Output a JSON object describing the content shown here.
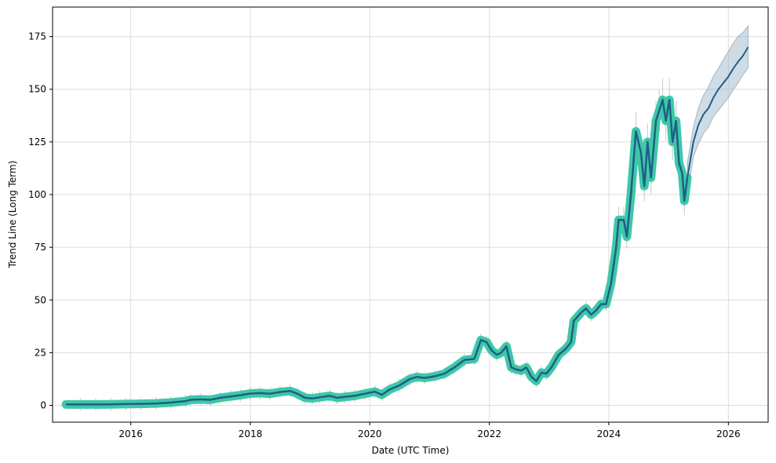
{
  "chart_data": {
    "type": "line",
    "title": "",
    "xlabel": "Date (UTC Time)",
    "ylabel": "Trend Line (Long Term)",
    "xlim": [
      "2014-09-10",
      "2026-09-01"
    ],
    "ylim": [
      -8,
      189
    ],
    "grid": true,
    "x_ticks": [
      {
        "date": "2016-01-01",
        "label": "2016"
      },
      {
        "date": "2018-01-01",
        "label": "2018"
      },
      {
        "date": "2020-01-01",
        "label": "2020"
      },
      {
        "date": "2022-01-01",
        "label": "2022"
      },
      {
        "date": "2024-01-01",
        "label": "2024"
      },
      {
        "date": "2026-01-01",
        "label": "2026"
      }
    ],
    "y_ticks": [
      0,
      25,
      50,
      75,
      100,
      125,
      150,
      175
    ],
    "colors": {
      "history_band": "#3ec8a8",
      "line": "#1f5f86",
      "forecast_band": "#9fb8cc",
      "spikes": "#9aa5b0"
    },
    "series": [
      {
        "role": "historical",
        "points": [
          [
            "2014-12-01",
            0.4
          ],
          [
            "2015-03-01",
            0.4
          ],
          [
            "2015-06-01",
            0.4
          ],
          [
            "2015-09-01",
            0.45
          ],
          [
            "2015-12-01",
            0.6
          ],
          [
            "2016-03-01",
            0.7
          ],
          [
            "2016-06-01",
            0.9
          ],
          [
            "2016-09-01",
            1.3
          ],
          [
            "2016-12-01",
            2.0
          ],
          [
            "2017-01-01",
            2.6
          ],
          [
            "2017-03-01",
            2.8
          ],
          [
            "2017-05-01",
            2.6
          ],
          [
            "2017-07-01",
            3.6
          ],
          [
            "2017-09-01",
            4.2
          ],
          [
            "2017-11-01",
            4.8
          ],
          [
            "2018-01-01",
            5.6
          ],
          [
            "2018-03-01",
            5.8
          ],
          [
            "2018-05-01",
            5.5
          ],
          [
            "2018-07-01",
            6.3
          ],
          [
            "2018-09-01",
            6.8
          ],
          [
            "2018-10-15",
            5.5
          ],
          [
            "2018-12-01",
            3.6
          ],
          [
            "2019-01-15",
            3.3
          ],
          [
            "2019-03-01",
            3.8
          ],
          [
            "2019-05-01",
            4.5
          ],
          [
            "2019-06-15",
            3.6
          ],
          [
            "2019-08-01",
            4.0
          ],
          [
            "2019-10-01",
            4.5
          ],
          [
            "2019-12-01",
            5.5
          ],
          [
            "2020-02-01",
            6.5
          ],
          [
            "2020-03-15",
            5.0
          ],
          [
            "2020-05-01",
            7.5
          ],
          [
            "2020-07-01",
            9.5
          ],
          [
            "2020-09-01",
            12.5
          ],
          [
            "2020-10-15",
            13.5
          ],
          [
            "2020-12-01",
            13.0
          ],
          [
            "2021-02-01",
            13.8
          ],
          [
            "2021-04-01",
            15.0
          ],
          [
            "2021-06-01",
            18.0
          ],
          [
            "2021-08-01",
            21.5
          ],
          [
            "2021-10-01",
            22.0
          ],
          [
            "2021-11-10",
            31.0
          ],
          [
            "2021-12-15",
            30.0
          ],
          [
            "2022-01-15",
            26.0
          ],
          [
            "2022-02-15",
            24.0
          ],
          [
            "2022-03-15",
            25.0
          ],
          [
            "2022-04-15",
            28.0
          ],
          [
            "2022-05-15",
            18.0
          ],
          [
            "2022-06-15",
            17.0
          ],
          [
            "2022-07-15",
            16.5
          ],
          [
            "2022-08-15",
            18.0
          ],
          [
            "2022-09-15",
            13.5
          ],
          [
            "2022-10-15",
            11.5
          ],
          [
            "2022-11-15",
            15.5
          ],
          [
            "2022-12-15",
            15.0
          ],
          [
            "2023-01-15",
            18.0
          ],
          [
            "2023-03-01",
            24.0
          ],
          [
            "2023-04-15",
            27.0
          ],
          [
            "2023-05-15",
            30.0
          ],
          [
            "2023-06-01",
            40.0
          ],
          [
            "2023-07-15",
            44.0
          ],
          [
            "2023-08-15",
            46.0
          ],
          [
            "2023-09-15",
            43.0
          ],
          [
            "2023-10-15",
            45.0
          ],
          [
            "2023-11-15",
            48.0
          ],
          [
            "2023-12-15",
            48.0
          ],
          [
            "2024-01-15",
            58.0
          ],
          [
            "2024-02-15",
            75.0
          ],
          [
            "2024-03-01",
            88.0
          ],
          [
            "2024-04-01",
            88.0
          ],
          [
            "2024-04-20",
            80.0
          ],
          [
            "2024-05-15",
            100.0
          ],
          [
            "2024-06-15",
            130.0
          ],
          [
            "2024-07-15",
            120.0
          ],
          [
            "2024-08-05",
            104.0
          ],
          [
            "2024-08-25",
            125.0
          ],
          [
            "2024-09-15",
            108.0
          ],
          [
            "2024-10-15",
            135.0
          ],
          [
            "2024-11-05",
            140.0
          ],
          [
            "2024-11-25",
            145.0
          ],
          [
            "2024-12-15",
            135.0
          ],
          [
            "2025-01-05",
            145.0
          ],
          [
            "2025-01-25",
            125.0
          ],
          [
            "2025-02-15",
            135.0
          ],
          [
            "2025-03-05",
            115.0
          ],
          [
            "2025-03-25",
            110.0
          ],
          [
            "2025-04-07",
            97.0
          ],
          [
            "2025-04-25",
            108.0
          ]
        ]
      },
      {
        "role": "forecast",
        "points": [
          [
            "2025-04-25",
            108.0
          ],
          [
            "2025-06-01",
            125.0
          ],
          [
            "2025-07-01",
            133.0
          ],
          [
            "2025-08-01",
            138.0
          ],
          [
            "2025-09-01",
            141.0
          ],
          [
            "2025-10-01",
            146.0
          ],
          [
            "2025-11-01",
            150.0
          ],
          [
            "2025-12-01",
            153.0
          ],
          [
            "2026-01-01",
            156.0
          ],
          [
            "2026-02-01",
            160.0
          ],
          [
            "2026-03-01",
            163.0
          ],
          [
            "2026-04-01",
            166.0
          ],
          [
            "2026-05-01",
            170.0
          ]
        ],
        "lower": [
          [
            "2025-04-25",
            100.0
          ],
          [
            "2025-06-01",
            118.0
          ],
          [
            "2025-07-01",
            124.0
          ],
          [
            "2025-08-01",
            129.0
          ],
          [
            "2025-09-01",
            132.0
          ],
          [
            "2025-10-01",
            137.0
          ],
          [
            "2025-11-01",
            140.0
          ],
          [
            "2025-12-01",
            143.0
          ],
          [
            "2026-01-01",
            146.0
          ],
          [
            "2026-02-01",
            150.0
          ],
          [
            "2026-03-01",
            153.0
          ],
          [
            "2026-04-01",
            157.0
          ],
          [
            "2026-05-01",
            160.0
          ]
        ],
        "upper": [
          [
            "2025-04-25",
            115.0
          ],
          [
            "2025-06-01",
            132.0
          ],
          [
            "2025-07-01",
            141.0
          ],
          [
            "2025-08-01",
            147.0
          ],
          [
            "2025-09-01",
            151.0
          ],
          [
            "2025-10-01",
            156.0
          ],
          [
            "2025-11-01",
            160.0
          ],
          [
            "2025-12-01",
            164.0
          ],
          [
            "2026-01-01",
            168.0
          ],
          [
            "2026-02-01",
            172.0
          ],
          [
            "2026-03-01",
            175.0
          ],
          [
            "2026-04-01",
            177.0
          ],
          [
            "2026-05-01",
            180.0
          ]
        ]
      }
    ]
  }
}
